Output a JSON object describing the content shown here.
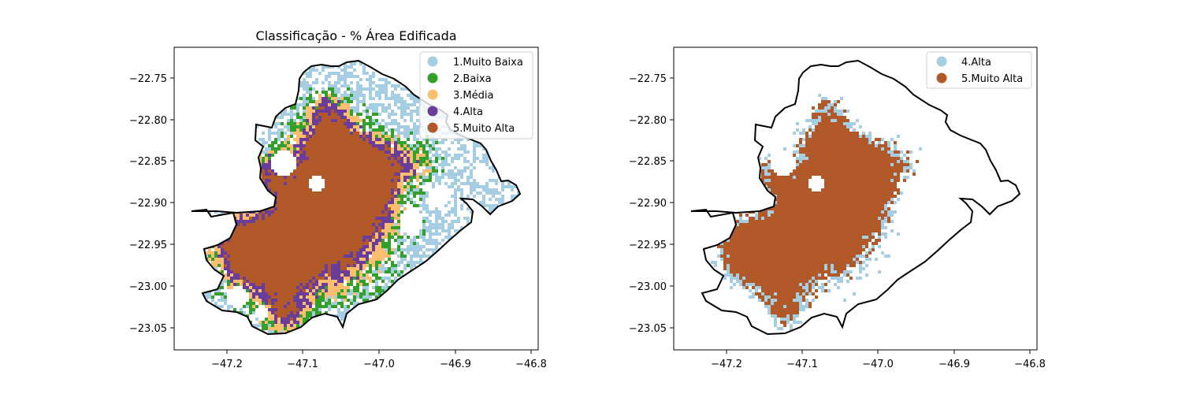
{
  "figure": {
    "panels": [
      {
        "id": "left",
        "title": "Classificação - % Área Edificada",
        "x_ticks": [
          "−47.2",
          "−47.1",
          "−47.0",
          "−46.9",
          "−46.8"
        ],
        "y_ticks": [
          "−22.75",
          "−22.80",
          "−22.85",
          "−22.90",
          "−22.95",
          "−23.00",
          "−23.05"
        ],
        "legend": [
          {
            "label": "1.Muito Baixa",
            "color": "#a6cee3"
          },
          {
            "label": "2.Baixa",
            "color": "#33a02c"
          },
          {
            "label": "3.Média",
            "color": "#fdbf6f"
          },
          {
            "label": "4.Alta",
            "color": "#6a3d9a"
          },
          {
            "label": "5.Muito Alta",
            "color": "#b15928"
          }
        ]
      },
      {
        "id": "right",
        "title": "",
        "x_ticks": [
          "−47.2",
          "−47.1",
          "−47.0",
          "−46.9",
          "−46.8"
        ],
        "y_ticks": [
          "−22.75",
          "−22.80",
          "−22.85",
          "−22.90",
          "−22.95",
          "−23.00",
          "−23.05"
        ],
        "legend": [
          {
            "label": "4.Alta",
            "color": "#a6cee3"
          },
          {
            "label": "5.Muito Alta",
            "color": "#b15928"
          }
        ]
      }
    ]
  }
}
